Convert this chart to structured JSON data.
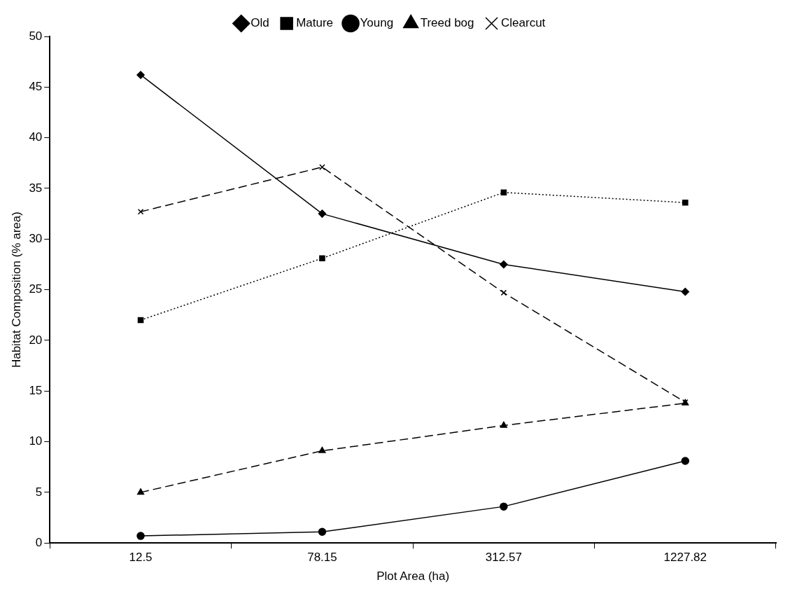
{
  "chart_data": {
    "type": "line",
    "xlabel": "Plot Area (ha)",
    "ylabel": "Habitat Composition (% area)",
    "categories": [
      "12.5",
      "78.15",
      "312.57",
      "1227.82"
    ],
    "ylim": [
      0,
      50
    ],
    "yticks": [
      0,
      5,
      10,
      15,
      20,
      25,
      30,
      35,
      40,
      45,
      50
    ],
    "grid": false,
    "legend": "top",
    "series": [
      {
        "name": "Old",
        "color": "#000000",
        "marker": "diamond",
        "line_style": "solid",
        "values": [
          46.2,
          32.5,
          27.5,
          24.8
        ]
      },
      {
        "name": "Mature",
        "color": "#000000",
        "marker": "square",
        "line_style": "dotted",
        "values": [
          22.0,
          28.1,
          34.6,
          33.6
        ]
      },
      {
        "name": "Young",
        "color": "#000000",
        "marker": "circle",
        "line_style": "solid",
        "values": [
          0.7,
          1.1,
          3.6,
          8.1
        ]
      },
      {
        "name": "Treed bog",
        "color": "#000000",
        "marker": "triangle",
        "line_style": "dashed",
        "values": [
          5.0,
          9.1,
          11.6,
          13.8
        ]
      },
      {
        "name": "Clearcut",
        "color": "#000000",
        "marker": "cross",
        "line_style": "dashed",
        "values": [
          32.7,
          37.1,
          24.7,
          13.9
        ]
      }
    ]
  }
}
